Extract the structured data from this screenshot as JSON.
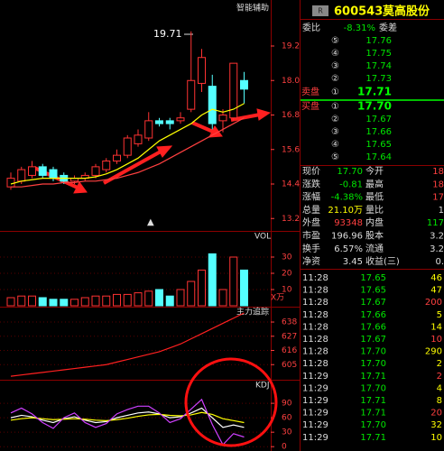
{
  "chart_data": [
    {
      "type": "candlestick",
      "title": "智能辅助",
      "annotation": "19.71",
      "open": [
        14.3,
        14.5,
        14.7,
        15.0,
        14.9,
        14.7,
        14.5,
        14.6,
        14.7,
        14.9,
        15.2,
        15.4,
        15.8,
        16.0,
        16.6,
        16.6,
        16.6,
        17.0,
        17.9,
        17.8,
        16.6,
        16.7,
        18.0
      ],
      "high": [
        14.8,
        15.0,
        15.2,
        15.1,
        15.0,
        14.8,
        14.7,
        14.8,
        15.1,
        15.3,
        15.6,
        16.1,
        16.3,
        16.9,
        16.7,
        16.7,
        16.9,
        19.71,
        19.1,
        18.2,
        17.0,
        18.6,
        18.3
      ],
      "low": [
        14.2,
        14.4,
        14.6,
        14.6,
        14.5,
        14.4,
        14.4,
        14.5,
        14.6,
        14.8,
        15.1,
        15.3,
        15.7,
        15.9,
        16.4,
        16.3,
        16.5,
        16.9,
        17.6,
        16.3,
        16.2,
        16.6,
        17.2
      ],
      "close": [
        14.6,
        14.9,
        15.0,
        14.7,
        14.6,
        14.5,
        14.6,
        14.7,
        15.0,
        15.2,
        15.4,
        16.0,
        16.1,
        16.6,
        16.5,
        16.5,
        16.7,
        18.0,
        18.8,
        16.5,
        16.8,
        18.6,
        17.7
      ],
      "up_color": "#ff3232",
      "down_color": "#54ffff",
      "series": [
        {
          "color": "#ffff00",
          "values": [
            14.4,
            14.5,
            14.55,
            14.6,
            14.6,
            14.6,
            14.6,
            14.6,
            14.65,
            14.75,
            14.9,
            15.1,
            15.3,
            15.6,
            15.9,
            16.1,
            16.3,
            16.5,
            16.8,
            17.0,
            16.9,
            17.0,
            17.2
          ]
        },
        {
          "color": "#ff4040",
          "values": [
            14.3,
            14.3,
            14.35,
            14.4,
            14.4,
            14.45,
            14.45,
            14.5,
            14.5,
            14.55,
            14.6,
            14.7,
            14.8,
            14.95,
            15.1,
            15.3,
            15.5,
            15.7,
            15.9,
            16.1,
            16.3,
            16.5,
            16.7
          ]
        }
      ],
      "ylim": [
        12.8,
        20.8
      ],
      "yticks": [
        13.2,
        14.4,
        15.6,
        16.8,
        {
          "value": 18,
          "label": "18.0"
        },
        19.2
      ]
    },
    {
      "type": "bar",
      "title": "VOL",
      "unit_label": "X万",
      "values": [
        5,
        6,
        6,
        5,
        4,
        4,
        4,
        5,
        6,
        6,
        7,
        7,
        8,
        9,
        10,
        6,
        10,
        15,
        22,
        32,
        10,
        30,
        22
      ],
      "ylim": [
        0,
        45
      ],
      "yticks": [
        10,
        20,
        30
      ]
    },
    {
      "type": "line",
      "title": "主力追踪",
      "series": [
        {
          "color": "#ff2020",
          "values": [
            596,
            597,
            598,
            599,
            600,
            601,
            602,
            603,
            604,
            605,
            607,
            609,
            611,
            613,
            615,
            618,
            621,
            625,
            629,
            633,
            637,
            641,
            645
          ]
        }
      ],
      "ylim": [
        594,
        648.5
      ],
      "yticks": [
        605,
        616,
        627,
        638
      ]
    },
    {
      "type": "line",
      "title": "KDJ",
      "series": [
        {
          "color": "#ffffff",
          "values": [
            60,
            65,
            62,
            55,
            50,
            58,
            62,
            55,
            50,
            52,
            60,
            65,
            70,
            72,
            68,
            60,
            62,
            70,
            80,
            60,
            40,
            45,
            40
          ]
        },
        {
          "color": "#ffff00",
          "values": [
            55,
            58,
            60,
            58,
            56,
            57,
            58,
            57,
            55,
            54,
            56,
            59,
            63,
            66,
            67,
            65,
            64,
            66,
            71,
            67,
            58,
            54,
            50
          ]
        },
        {
          "color": "#d040ff",
          "values": [
            70,
            80,
            68,
            50,
            38,
            60,
            70,
            50,
            40,
            48,
            68,
            77,
            84,
            84,
            70,
            50,
            58,
            78,
            98,
            46,
            4,
            27,
            20
          ]
        }
      ],
      "ylim": [
        -9,
        137
      ],
      "yticks": [
        0,
        30,
        60,
        90
      ]
    }
  ],
  "panel": {
    "badge": "R",
    "code": "600543",
    "name": "莫高股份",
    "ratio_label": "委比",
    "ratio": "-8.31%",
    "diff_label": "委差",
    "sell_label": "卖盘",
    "buy_label": "买盘",
    "asks": [
      [
        "⑤",
        "17.76"
      ],
      [
        "④",
        "17.75"
      ],
      [
        "③",
        "17.74"
      ],
      [
        "②",
        "17.73"
      ],
      [
        "①",
        "17.71"
      ]
    ],
    "bids": [
      [
        "①",
        "17.70"
      ],
      [
        "②",
        "17.67"
      ],
      [
        "③",
        "17.66"
      ],
      [
        "④",
        "17.65"
      ],
      [
        "⑤",
        "17.64"
      ]
    ],
    "stats": [
      [
        "现价",
        "17.70",
        "今开",
        "18"
      ],
      [
        "涨跌",
        "-0.81",
        "最高",
        "18"
      ],
      [
        "涨幅",
        "-4.38%",
        "最低",
        "17"
      ],
      [
        "总量",
        "21.10万",
        "量比",
        "1"
      ],
      [
        "外盘",
        "93348",
        "内盘",
        "117"
      ],
      [
        "市盈",
        "196.96",
        "股本",
        "3.2"
      ],
      [
        "换手",
        "6.57%",
        "流通",
        "3.2"
      ],
      [
        "净资",
        "3.45",
        "收益(三)",
        "0."
      ]
    ],
    "trades": [
      [
        "11:28",
        "17.65",
        "46"
      ],
      [
        "11:28",
        "17.65",
        "47"
      ],
      [
        "11:28",
        "17.67",
        "200"
      ],
      [
        "11:28",
        "17.66",
        "5"
      ],
      [
        "11:28",
        "17.66",
        "14"
      ],
      [
        "11:28",
        "17.67",
        "10"
      ],
      [
        "11:28",
        "17.70",
        "290"
      ],
      [
        "11:28",
        "17.70",
        "2"
      ],
      [
        "11:29",
        "17.71",
        "2"
      ],
      [
        "11:29",
        "17.70",
        "4"
      ],
      [
        "11:29",
        "17.71",
        "8"
      ],
      [
        "11:29",
        "17.71",
        "20"
      ],
      [
        "11:29",
        "17.70",
        "32"
      ],
      [
        "11:29",
        "17.71",
        "10"
      ]
    ]
  }
}
